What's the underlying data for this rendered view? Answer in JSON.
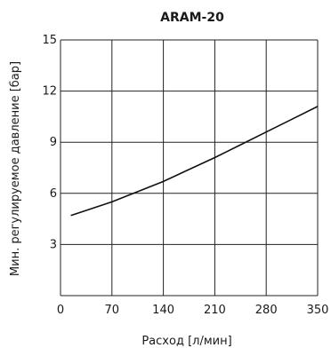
{
  "chart_data": {
    "type": "line",
    "title": "ARAM-20",
    "xlabel": "Расход [л/мин]",
    "ylabel": "Мин. регулируемое давление [бар]",
    "xlim": [
      0,
      350
    ],
    "ylim": [
      0,
      15
    ],
    "x_ticks": [
      0,
      70,
      140,
      210,
      280,
      350
    ],
    "y_ticks": [
      3,
      6,
      9,
      12,
      15
    ],
    "grid": true,
    "series": [
      {
        "x": [
          14,
          35,
          70,
          105,
          140,
          175,
          210,
          245,
          280,
          315,
          350
        ],
        "y": [
          4.7,
          5.0,
          5.5,
          6.1,
          6.7,
          7.4,
          8.1,
          8.85,
          9.6,
          10.35,
          11.1
        ]
      }
    ]
  }
}
